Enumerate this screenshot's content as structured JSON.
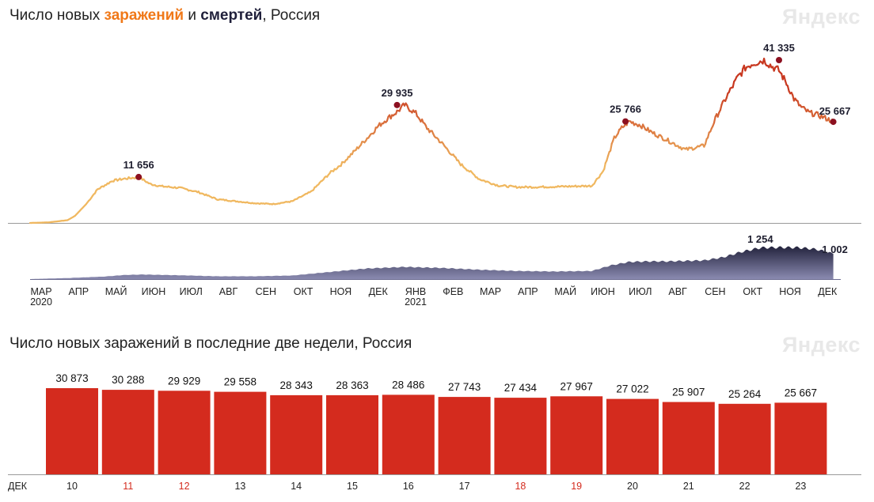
{
  "top": {
    "title_prefix": "Число новых ",
    "title_cases": "заражений",
    "title_mid": " и ",
    "title_deaths": "смертей",
    "title_suffix": ", Россия",
    "logo": "Яндекс"
  },
  "bottom": {
    "title": "Число новых заражений в последние две недели, Россия",
    "logo": "Яндекс"
  },
  "chart_data": [
    {
      "type": "line",
      "name": "cases",
      "colors": {
        "low": "#f0b860",
        "high": "#c83820",
        "marker": "#8c1020"
      },
      "x_unit": "months since 2020-03",
      "annotations": [
        {
          "x": 2.9,
          "y": 11656,
          "label": "11 656"
        },
        {
          "x": 9.8,
          "y": 29935,
          "label": "29 935"
        },
        {
          "x": 15.9,
          "y": 25766,
          "label": "25 766"
        },
        {
          "x": 20.0,
          "y": 41335,
          "label": "41 335"
        },
        {
          "x": 21.45,
          "y": 25667,
          "label": "25 667"
        }
      ],
      "x": [
        0,
        0.5,
        1,
        1.2,
        1.5,
        1.8,
        2.2,
        2.5,
        2.8,
        2.9,
        3.2,
        3.5,
        4.0,
        4.5,
        5.0,
        5.5,
        6.0,
        6.5,
        7.0,
        7.5,
        8.0,
        8.3,
        8.6,
        9.0,
        9.3,
        9.6,
        9.8,
        10.0,
        10.3,
        10.6,
        11.0,
        11.5,
        12.0,
        12.5,
        13.0,
        13.5,
        14.0,
        14.5,
        15.0,
        15.3,
        15.6,
        15.8,
        16.0,
        16.3,
        16.6,
        17.0,
        17.5,
        18.0,
        18.3,
        18.6,
        18.9,
        19.1,
        19.3,
        19.6,
        19.8,
        20.0,
        20.2,
        20.4,
        20.6,
        20.8,
        21.0,
        21.2,
        21.45
      ],
      "y": [
        0,
        150,
        700,
        1800,
        4800,
        8500,
        10700,
        11200,
        11500,
        11656,
        9900,
        9300,
        8900,
        7800,
        6000,
        5500,
        5000,
        4800,
        5500,
        7900,
        12600,
        14800,
        17600,
        21500,
        24600,
        26900,
        28200,
        29935,
        27800,
        24100,
        20200,
        14900,
        11100,
        9500,
        9100,
        9100,
        9200,
        9300,
        9400,
        13100,
        21500,
        24100,
        25766,
        24800,
        23000,
        21100,
        18600,
        19600,
        26400,
        32000,
        37000,
        39400,
        40500,
        41335,
        39800,
        38700,
        35500,
        31500,
        29300,
        28000,
        27500,
        26800,
        25667
      ]
    },
    {
      "type": "area",
      "name": "deaths",
      "colors": {
        "fill_start": "#8a8ab0",
        "fill_end": "#23233d"
      },
      "x_unit": "months since 2020-03",
      "annotations": [
        {
          "x": 19.5,
          "y": 1254,
          "label": "1 254"
        },
        {
          "x": 21.45,
          "y": 1002,
          "label": "1 002"
        }
      ],
      "x": [
        0,
        1,
        2,
        2.5,
        3,
        4,
        5,
        6,
        7,
        8,
        9,
        10,
        11,
        12,
        13,
        14,
        15,
        15.5,
        16,
        16.5,
        17,
        17.5,
        18,
        18.5,
        19,
        19.5,
        20,
        20.5,
        21,
        21.45
      ],
      "y": [
        0,
        40,
        100,
        160,
        180,
        150,
        110,
        110,
        140,
        280,
        420,
        480,
        440,
        370,
        320,
        300,
        320,
        540,
        680,
        700,
        700,
        720,
        740,
        860,
        1080,
        1240,
        1254,
        1250,
        1180,
        1002
      ],
      "x_ticks": [
        {
          "label": "МАР",
          "year": "2020",
          "x": 0
        },
        {
          "label": "АПР",
          "x": 1
        },
        {
          "label": "МАЙ",
          "x": 2
        },
        {
          "label": "ИЮН",
          "x": 3
        },
        {
          "label": "ИЮЛ",
          "x": 4
        },
        {
          "label": "АВГ",
          "x": 5
        },
        {
          "label": "СЕН",
          "x": 6
        },
        {
          "label": "ОКТ",
          "x": 7
        },
        {
          "label": "НОЯ",
          "x": 8
        },
        {
          "label": "ДЕК",
          "x": 9
        },
        {
          "label": "ЯНВ",
          "year": "2021",
          "x": 10
        },
        {
          "label": "ФЕВ",
          "x": 11
        },
        {
          "label": "МАР",
          "x": 12
        },
        {
          "label": "АПР",
          "x": 13
        },
        {
          "label": "МАЙ",
          "x": 14
        },
        {
          "label": "ИЮН",
          "x": 15
        },
        {
          "label": "ИЮЛ",
          "x": 16
        },
        {
          "label": "АВГ",
          "x": 17
        },
        {
          "label": "СЕН",
          "x": 18
        },
        {
          "label": "ОКТ",
          "x": 19
        },
        {
          "label": "НОЯ",
          "x": 20
        },
        {
          "label": "ДЕК",
          "x": 21
        }
      ]
    },
    {
      "type": "bar",
      "name": "last_two_weeks",
      "month_label": "ДЕК",
      "bar_color": "#d42b1e",
      "weekend_color": "#d42b1e",
      "categories": [
        "10",
        "11",
        "12",
        "13",
        "14",
        "15",
        "16",
        "17",
        "18",
        "19",
        "20",
        "21",
        "22",
        "23"
      ],
      "weekend": [
        false,
        true,
        true,
        false,
        false,
        false,
        false,
        false,
        true,
        true,
        false,
        false,
        false,
        false
      ],
      "values": [
        30873,
        30288,
        29929,
        29558,
        28343,
        28363,
        28486,
        27743,
        27434,
        27967,
        27022,
        25907,
        25264,
        25667
      ],
      "labels": [
        "30 873",
        "30 288",
        "29 929",
        "29 558",
        "28 343",
        "28 363",
        "28 486",
        "27 743",
        "27 434",
        "27 967",
        "27 022",
        "25 907",
        "25 264",
        "25 667"
      ],
      "ylim": [
        0,
        31000
      ]
    }
  ]
}
